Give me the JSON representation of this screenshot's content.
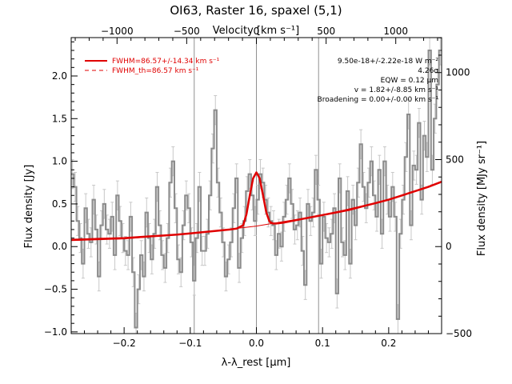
{
  "chart_data": {
    "type": "line",
    "title": "OI63, Raster 16, spaxel (5,1)",
    "xlabel": "λ-λ_rest [μm]",
    "ylabel": "Flux density [Jy]",
    "top_xlabel": "Velocity [km s⁻¹]",
    "right_ylabel": "Flux density [MJy sr⁻¹]",
    "xlim": [
      -0.28,
      0.28
    ],
    "ylim": [
      -1.02,
      2.45
    ],
    "xticks": [
      -0.2,
      -0.1,
      0.0,
      0.1,
      0.2
    ],
    "xtick_labels": [
      "−0.2",
      "−0.1",
      "0.0",
      "0.1",
      "0.2"
    ],
    "yticks": [
      -1.0,
      -0.5,
      0.0,
      0.5,
      1.0,
      1.5,
      2.0
    ],
    "ytick_labels": [
      "−1.0",
      "−0.5",
      "0.0",
      "0.5",
      "1.0",
      "1.5",
      "2.0"
    ],
    "top_ticks": [
      -1000,
      -500,
      0,
      500,
      1000
    ],
    "top_tick_labels": [
      "−1000",
      "−500",
      "0",
      "500",
      "1000"
    ],
    "top_tick_x": [
      -0.2107,
      -0.1054,
      0.0,
      0.1054,
      0.2107
    ],
    "right_ticks": [
      -500,
      0,
      500,
      1000
    ],
    "right_tick_labels": [
      "−500",
      "0",
      "500",
      "1000"
    ],
    "right_tick_y": [
      -1.02,
      0.0,
      1.02,
      2.04
    ],
    "vlines": [
      -0.094,
      0.0,
      0.094
    ],
    "annotations": [
      "9.50e-18+/-2.22e-18 W m⁻²",
      "4.26σ",
      "EQW = 0.12 μm",
      "v = 1.82+/-8.85 km s⁻¹",
      "Broadening = 0.00+/-0.00 km s⁻¹"
    ],
    "series": [
      {
        "name": "FWHM=86.57+/-14.34 km s⁻¹",
        "color": "#e00000",
        "style": "solid",
        "kind": "fit",
        "x": [
          -0.28,
          -0.26,
          -0.24,
          -0.22,
          -0.2,
          -0.18,
          -0.16,
          -0.14,
          -0.12,
          -0.1,
          -0.08,
          -0.06,
          -0.04,
          -0.03,
          -0.02,
          -0.015,
          -0.01,
          -0.005,
          0.0,
          0.005,
          0.01,
          0.015,
          0.02,
          0.025,
          0.03,
          0.04,
          0.06,
          0.08,
          0.1,
          0.12,
          0.14,
          0.16,
          0.18,
          0.2,
          0.22,
          0.24,
          0.26,
          0.28
        ],
        "y": [
          0.08,
          0.085,
          0.09,
          0.095,
          0.1,
          0.11,
          0.12,
          0.13,
          0.14,
          0.155,
          0.17,
          0.185,
          0.2,
          0.21,
          0.25,
          0.38,
          0.6,
          0.8,
          0.87,
          0.8,
          0.6,
          0.4,
          0.29,
          0.27,
          0.27,
          0.28,
          0.31,
          0.34,
          0.37,
          0.4,
          0.43,
          0.47,
          0.51,
          0.55,
          0.6,
          0.65,
          0.7,
          0.76
        ]
      },
      {
        "name": "FWHM_th=86.57 km s⁻¹",
        "color": "#e00000",
        "style": "dashed",
        "kind": "legend-only"
      },
      {
        "name": "",
        "color": "#e00000",
        "style": "thin",
        "kind": "continuum",
        "x": [
          -0.28,
          -0.2,
          -0.1,
          0.0,
          0.1,
          0.2,
          0.28
        ],
        "y": [
          0.07,
          0.09,
          0.15,
          0.24,
          0.37,
          0.55,
          0.76
        ]
      },
      {
        "name": "",
        "color": "#808080",
        "kind": "spectrum-step",
        "error": 0.17,
        "x": [
          -0.278,
          -0.274,
          -0.27,
          -0.266,
          -0.262,
          -0.258,
          -0.254,
          -0.25,
          -0.246,
          -0.242,
          -0.238,
          -0.234,
          -0.23,
          -0.226,
          -0.222,
          -0.218,
          -0.214,
          -0.21,
          -0.206,
          -0.202,
          -0.198,
          -0.194,
          -0.19,
          -0.186,
          -0.182,
          -0.178,
          -0.174,
          -0.17,
          -0.166,
          -0.162,
          -0.158,
          -0.154,
          -0.15,
          -0.146,
          -0.142,
          -0.138,
          -0.134,
          -0.13,
          -0.126,
          -0.122,
          -0.118,
          -0.114,
          -0.11,
          -0.106,
          -0.102,
          -0.098,
          -0.094,
          -0.09,
          -0.086,
          -0.082,
          -0.078,
          -0.074,
          -0.07,
          -0.066,
          -0.062,
          -0.058,
          -0.054,
          -0.05,
          -0.046,
          -0.042,
          -0.038,
          -0.034,
          -0.03,
          -0.026,
          -0.022,
          -0.018,
          -0.014,
          -0.01,
          -0.006,
          -0.002,
          0.002,
          0.006,
          0.01,
          0.014,
          0.018,
          0.022,
          0.026,
          0.03,
          0.034,
          0.038,
          0.042,
          0.046,
          0.05,
          0.054,
          0.058,
          0.062,
          0.066,
          0.07,
          0.074,
          0.078,
          0.082,
          0.086,
          0.09,
          0.094,
          0.098,
          0.102,
          0.106,
          0.11,
          0.114,
          0.118,
          0.122,
          0.126,
          0.13,
          0.134,
          0.138,
          0.142,
          0.146,
          0.15,
          0.154,
          0.158,
          0.162,
          0.166,
          0.17,
          0.174,
          0.178,
          0.182,
          0.186,
          0.19,
          0.194,
          0.198,
          0.202,
          0.206,
          0.21,
          0.214,
          0.218,
          0.222,
          0.226,
          0.23,
          0.234,
          0.238,
          0.242,
          0.246,
          0.25,
          0.254,
          0.258,
          0.262,
          0.266,
          0.27,
          0.274,
          0.278
        ],
        "y": [
          0.85,
          0.7,
          0.3,
          0.1,
          -0.2,
          0.45,
          0.15,
          0.05,
          0.55,
          0.2,
          -0.35,
          0.25,
          0.5,
          0.2,
          0.15,
          0.35,
          -0.1,
          0.6,
          0.3,
          0.1,
          -0.05,
          -0.1,
          0.35,
          -0.3,
          -0.95,
          -0.5,
          -0.1,
          -0.35,
          0.4,
          0.1,
          -0.15,
          0.15,
          0.7,
          0.25,
          -0.1,
          -0.25,
          0.1,
          0.75,
          1.0,
          0.45,
          -0.15,
          -0.3,
          0.25,
          0.6,
          0.45,
          0.05,
          -0.4,
          0.1,
          0.7,
          -0.05,
          -0.05,
          0.15,
          0.6,
          1.15,
          1.6,
          0.75,
          0.4,
          0.05,
          -0.35,
          -0.15,
          0.05,
          0.45,
          0.8,
          -0.25,
          0.1,
          0.3,
          0.65,
          0.85,
          0.6,
          0.3,
          0.55,
          0.85,
          0.75,
          0.55,
          0.4,
          0.3,
          0.25,
          -0.1,
          0.15,
          0.0,
          0.35,
          0.55,
          0.8,
          0.5,
          0.2,
          0.25,
          0.4,
          -0.05,
          -0.45,
          0.5,
          0.3,
          0.4,
          0.9,
          0.55,
          -0.2,
          0.35,
          0.1,
          0.05,
          0.15,
          0.45,
          -0.55,
          0.8,
          0.05,
          -0.1,
          0.65,
          -0.2,
          0.55,
          0.25,
          0.75,
          1.2,
          0.7,
          0.45,
          0.75,
          1.0,
          0.6,
          0.35,
          0.9,
          0.15,
          1.0,
          0.55,
          0.35,
          0.7,
          0.35,
          -0.85,
          0.15,
          0.55,
          1.05,
          1.55,
          0.25,
          0.95,
          0.9,
          1.45,
          0.55,
          1.3,
          1.05,
          2.3,
          0.9,
          1.5,
          1.9,
          2.3
        ]
      }
    ]
  }
}
